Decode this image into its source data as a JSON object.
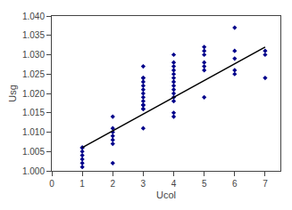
{
  "chart_data": {
    "type": "scatter",
    "xlabel": "Ucol",
    "ylabel": "Usg",
    "xlim": [
      0,
      7.5
    ],
    "ylim": [
      1.0,
      1.04
    ],
    "xticks": [
      0,
      1,
      2,
      3,
      4,
      5,
      6,
      7
    ],
    "yticks": [
      {
        "value": 1.0,
        "label": "1.000"
      },
      1.005,
      {
        "value": 1.01,
        "label": "1.010"
      },
      1.015,
      {
        "value": 1.02,
        "label": "1.020"
      },
      1.025,
      {
        "value": 1.03,
        "label": "1.030"
      },
      1.035,
      {
        "value": 1.04,
        "label": "1.040"
      }
    ],
    "grid": false,
    "series": [
      {
        "type": "scatter",
        "color": "#00008B",
        "marker": "diamond",
        "x": [
          1,
          1,
          1,
          1,
          1,
          1,
          1,
          2,
          2,
          2,
          2,
          2,
          2,
          2,
          3,
          3,
          3,
          3,
          3,
          3,
          3,
          3,
          3,
          3,
          3,
          3,
          3,
          3,
          4,
          4,
          4,
          4,
          4,
          4,
          4,
          4,
          4,
          4,
          4,
          4,
          4,
          4,
          5,
          5,
          5,
          5,
          5,
          5,
          5,
          6,
          6,
          6,
          6,
          6,
          7,
          7,
          7
        ],
        "values": [
          1.006,
          1.006,
          1.005,
          1.004,
          1.003,
          1.002,
          1.001,
          1.014,
          1.011,
          1.01,
          1.009,
          1.008,
          1.007,
          1.002,
          1.027,
          1.024,
          1.024,
          1.023,
          1.022,
          1.021,
          1.02,
          1.019,
          1.018,
          1.017,
          1.017,
          1.016,
          1.016,
          1.011,
          1.03,
          1.028,
          1.027,
          1.026,
          1.025,
          1.024,
          1.023,
          1.022,
          1.021,
          1.02,
          1.019,
          1.018,
          1.015,
          1.014,
          1.032,
          1.031,
          1.03,
          1.028,
          1.027,
          1.026,
          1.019,
          1.037,
          1.031,
          1.029,
          1.026,
          1.025,
          1.031,
          1.03,
          1.024
        ]
      },
      {
        "type": "line",
        "color": "#000000",
        "line_style": "solid",
        "x": [
          1.0,
          7.0
        ],
        "values": [
          1.006,
          1.032
        ]
      }
    ]
  }
}
